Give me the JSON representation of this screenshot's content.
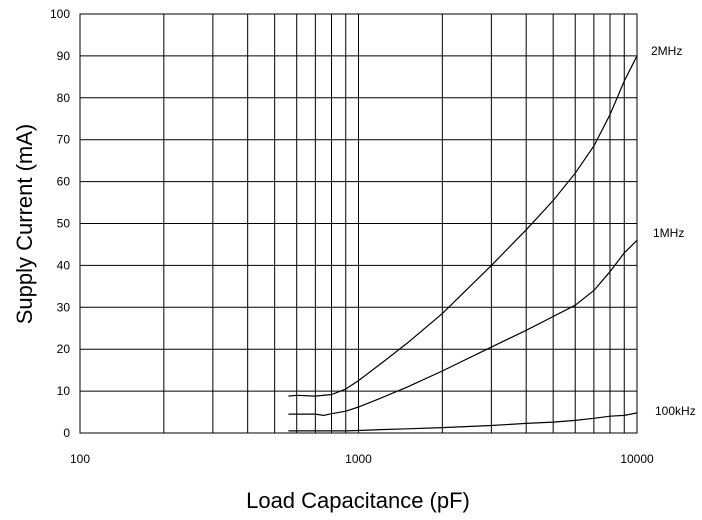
{
  "chart_data": {
    "type": "line",
    "xscale": "log",
    "xlim": [
      100,
      10000
    ],
    "ylim": [
      0,
      100
    ],
    "xlabel": "Load Capacitance (pF)",
    "ylabel": "Supply Current (mA)",
    "grid": true,
    "x_ticks": [
      "100",
      "1000",
      "10000"
    ],
    "y_ticks": [
      "0",
      "10",
      "20",
      "30",
      "40",
      "50",
      "60",
      "70",
      "80",
      "90",
      "100"
    ],
    "series": [
      {
        "name": "2MHz",
        "x": [
          560,
          600,
          700,
          800,
          900,
          1000,
          1200,
          1500,
          2000,
          3000,
          4000,
          5000,
          6000,
          7000,
          8000,
          9000,
          10000
        ],
        "y": [
          8.8,
          9.0,
          8.8,
          9.2,
          10.5,
          12.5,
          16.5,
          21.5,
          28.5,
          40.0,
          48.5,
          55.5,
          62.0,
          68.5,
          76.0,
          84.0,
          90.0
        ]
      },
      {
        "name": "1MHz",
        "x": [
          560,
          600,
          700,
          750,
          800,
          900,
          1000,
          1200,
          1500,
          2000,
          3000,
          4000,
          5000,
          6000,
          7000,
          8000,
          9000,
          10000
        ],
        "y": [
          4.5,
          4.5,
          4.5,
          4.2,
          4.6,
          5.2,
          6.2,
          8.3,
          11.0,
          14.8,
          20.5,
          24.5,
          27.8,
          30.5,
          34.0,
          38.5,
          43.0,
          46.0
        ]
      },
      {
        "name": "100kHz",
        "x": [
          560,
          700,
          900,
          1000,
          1200,
          1500,
          2000,
          3000,
          4000,
          5000,
          6000,
          7000,
          8000,
          9000,
          10000
        ],
        "y": [
          0.5,
          0.5,
          0.5,
          0.6,
          0.8,
          1.0,
          1.3,
          1.8,
          2.3,
          2.6,
          3.0,
          3.5,
          4.0,
          4.2,
          4.8
        ]
      }
    ]
  }
}
